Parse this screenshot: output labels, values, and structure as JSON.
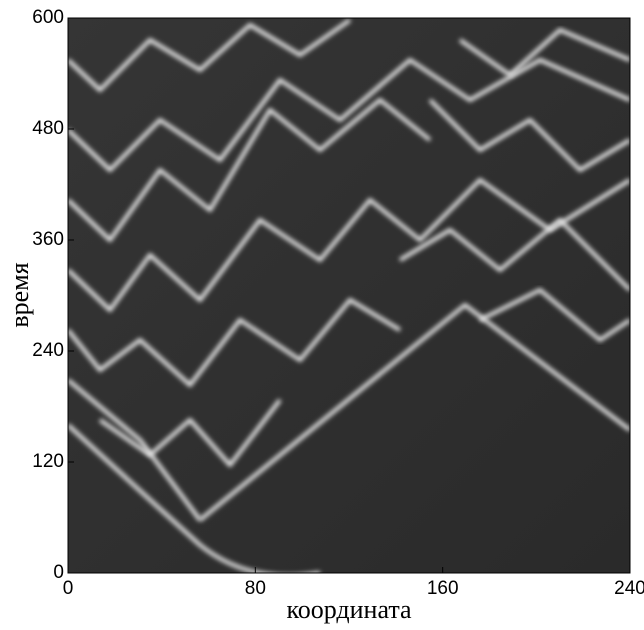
{
  "chart_data": {
    "type": "image",
    "x_label": "координата",
    "y_label": "время",
    "xlim": [
      0,
      240
    ],
    "xticks": [
      0,
      80,
      160,
      240
    ],
    "ylim": [
      0,
      600
    ],
    "yticks": [
      0,
      120,
      240,
      360,
      480,
      600
    ]
  }
}
